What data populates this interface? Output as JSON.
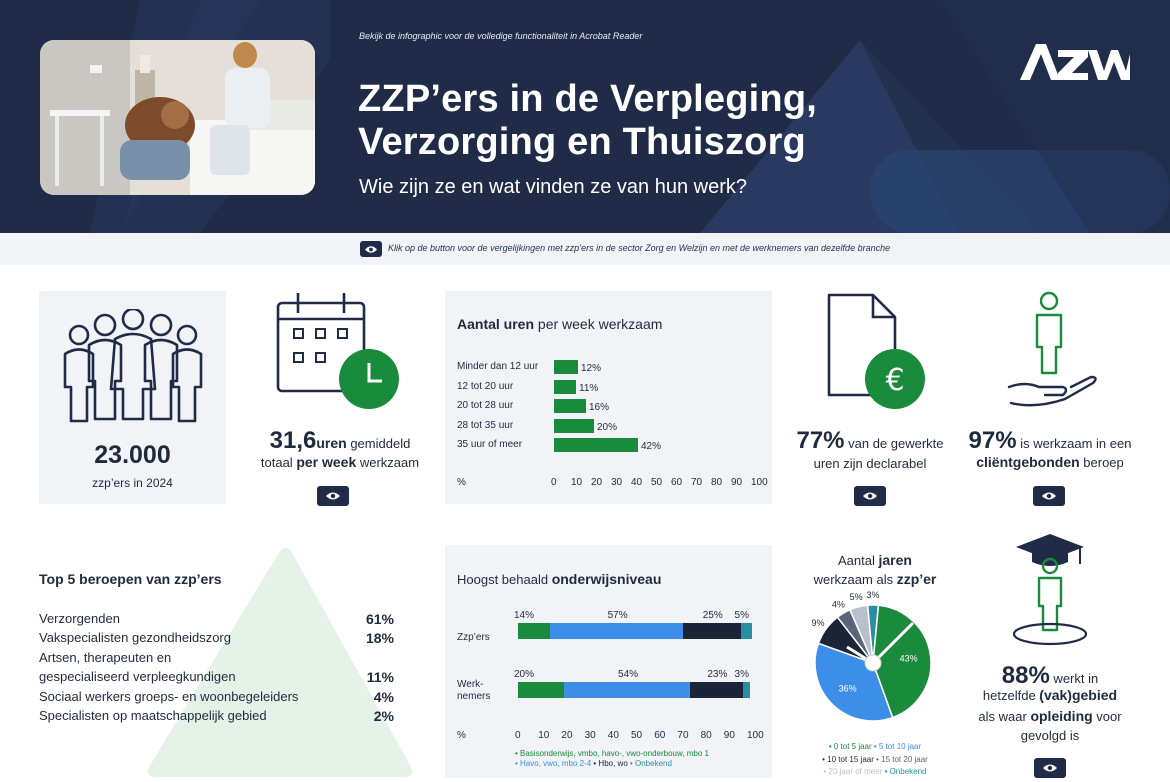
{
  "header": {
    "notice": "Bekijk de infographic voor de volledige functionaliteit in Acrobat Reader",
    "title_line1": "ZZP’ers in de Verpleging,",
    "title_line2": "Verzorging en Thuiszorg",
    "subtitle": "Wie zijn ze en wat vinden ze van hun werk?",
    "logo_text": "AZW"
  },
  "infobar": {
    "text": "Klik op de button voor de vergelijkingen met zzp’ers in de sector Zorg en Welzijn en met de werknemers van dezelfde branche"
  },
  "stat_zzpers": {
    "number": "23.000",
    "label": "zzp’ers in 2024"
  },
  "stat_hours": {
    "number": "31,6",
    "unit": "uren",
    "text1": " gemiddeld",
    "text2": "totaal ",
    "bold2": "per week",
    "text3": " werkzaam"
  },
  "stat_declarable": {
    "number": "77%",
    "text1": " van de gewerkte",
    "text2": "uren zijn declarabel"
  },
  "stat_client": {
    "number": "97%",
    "text1": " is werkzaam in een",
    "bold2": "cliëntgebonden",
    "text2": " beroep"
  },
  "stat_field": {
    "number": "88%",
    "text1": " werkt in",
    "text2": "hetzelfde ",
    "bold2": "(vak)gebied",
    "text3": "als waar ",
    "bold3": "opleiding",
    "text4": " voor",
    "text5": "gevolgd is"
  },
  "hours_chart": {
    "title_bold": "Aantal uren",
    "title_rest": " per week werkzaam",
    "axis_unit": "%",
    "ticks": [
      "0",
      "10",
      "20",
      "30",
      "40",
      "50",
      "60",
      "70",
      "80",
      "90",
      "100"
    ]
  },
  "top5": {
    "title": "Top 5 beroepen van zzp’ers",
    "items": [
      {
        "label": "Verzorgenden",
        "pct": "61%"
      },
      {
        "label": "Vakspecialisten gezondheidszorg",
        "pct": "18%"
      },
      {
        "label": "Artsen, therapeuten en",
        "label2": "gespecialiseerd verpleegkundigen",
        "pct": "11%"
      },
      {
        "label": "Sociaal werkers groeps- en woonbegeleiders",
        "pct": "4%"
      },
      {
        "label": "Specialisten op maatschappelijk gebied",
        "pct": "2%"
      }
    ]
  },
  "education_chart": {
    "title_rest": "Hoogst behaald ",
    "title_bold": "onderwijsniveau",
    "row1_label": "Zzp’ers",
    "row2_label1": "Werk-",
    "row2_label2": "nemers",
    "axis_unit": "%",
    "ticks": [
      "0",
      "10",
      "20",
      "30",
      "40",
      "50",
      "60",
      "70",
      "80",
      "90",
      "100"
    ],
    "legend1": "• Basisonderwijs, vmbo, havo-, vwo-onderbouw, mbo 1",
    "legend2a": "• Havo, vwo, mbo 2-4",
    "legend2b": " • Hbo, wo",
    "legend2c": " • Onbekend"
  },
  "years_chart": {
    "title1": "Aantal ",
    "title1_bold": "jaren",
    "title2": "werkzaam als ",
    "title2_bold": "zzp’er",
    "legend": {
      "l1a": "• 0 tot 5 jaar",
      "l1b": "  • 5 tot 10 jaar",
      "l2a": "• 10 tot 15 jaar",
      "l2b": "  • 15 tot 20 jaar",
      "l3a": "• 20 jaar of meer",
      "l3b": "  • Onbekend"
    }
  },
  "colors": {
    "navy": "#1f2b47",
    "green": "#1a8a3c",
    "blue": "#3d8ee8",
    "dark": "#1c2537",
    "teal": "#2a8ea0",
    "grey": "#5a6577",
    "lightgrey": "#b8c0cc"
  },
  "chart_data": [
    {
      "type": "bar",
      "orientation": "horizontal",
      "title": "Aantal uren per week werkzaam",
      "categories": [
        "Minder dan 12 uur",
        "12 tot 20 uur",
        "20 tot 28 uur",
        "28 tot 35 uur",
        "35 uur of meer"
      ],
      "values": [
        12,
        11,
        16,
        20,
        42
      ],
      "value_labels": [
        "12%",
        "11%",
        "16%",
        "20%",
        "42%"
      ],
      "xlabel": "%",
      "xlim": [
        0,
        100
      ],
      "grid": false,
      "legend": "none"
    },
    {
      "type": "bar",
      "orientation": "horizontal",
      "stacked": true,
      "title": "Hoogst behaald onderwijsniveau",
      "categories": [
        "Zzp’ers",
        "Werknemers"
      ],
      "series": [
        {
          "name": "Basisonderwijs, vmbo, havo-, vwo-onderbouw, mbo 1",
          "values": [
            14,
            20
          ],
          "labels": [
            "14%",
            "20%"
          ]
        },
        {
          "name": "Havo, vwo, mbo 2-4",
          "values": [
            57,
            54
          ],
          "labels": [
            "57%",
            "54%"
          ]
        },
        {
          "name": "Hbo, wo",
          "values": [
            25,
            23
          ],
          "labels": [
            "25%",
            "23%"
          ]
        },
        {
          "name": "Onbekend",
          "values": [
            5,
            3
          ],
          "labels": [
            "5%",
            "3%"
          ]
        }
      ],
      "xlabel": "%",
      "xlim": [
        0,
        100
      ],
      "legend": "bottom"
    },
    {
      "type": "pie",
      "title": "Aantal jaren werkzaam als zzp’er",
      "categories": [
        "0 tot 5 jaar",
        "5 tot 10 jaar",
        "10 tot 15 jaar",
        "15 tot 20 jaar",
        "20 jaar of meer",
        "Onbekend"
      ],
      "values": [
        43,
        36,
        9,
        4,
        5,
        3
      ],
      "value_labels": [
        "43%",
        "36%",
        "9%",
        "4%",
        "5%",
        "3%"
      ],
      "legend": "bottom"
    }
  ]
}
